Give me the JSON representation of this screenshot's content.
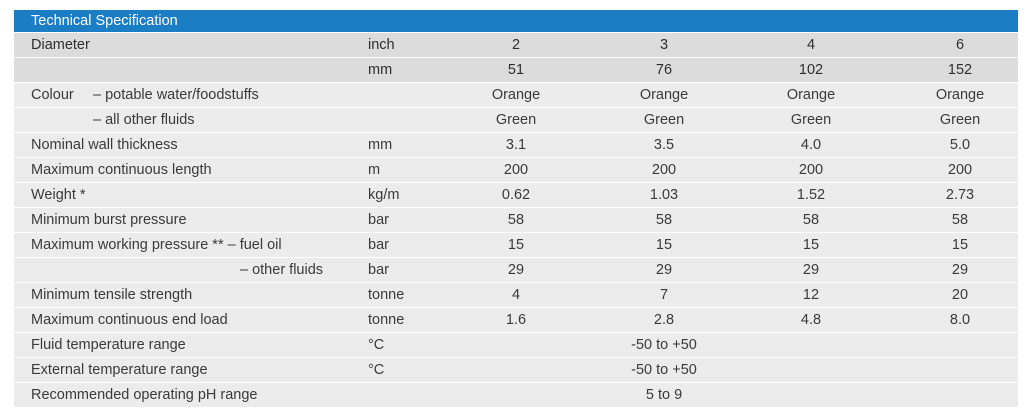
{
  "title": "Technical Specification",
  "header_rows": [
    {
      "label": "Diameter",
      "unit": "inch",
      "values": [
        "2",
        "3",
        "4",
        "6"
      ]
    },
    {
      "label": "",
      "unit": "mm",
      "values": [
        "51",
        "76",
        "102",
        "152"
      ]
    }
  ],
  "colour": {
    "label": "Colour",
    "sub1": "– potable water/foodstuffs",
    "sub1_values": [
      "Orange",
      "Orange",
      "Orange",
      "Orange"
    ],
    "sub2": "– all other fluids",
    "sub2_values": [
      "Green",
      "Green",
      "Green",
      "Green"
    ]
  },
  "rows": [
    {
      "label": "Nominal wall thickness",
      "unit": "mm",
      "values": [
        "3.1",
        "3.5",
        "4.0",
        "5.0"
      ]
    },
    {
      "label": "Maximum continuous length",
      "unit": "m",
      "values": [
        "200",
        "200",
        "200",
        "200"
      ]
    },
    {
      "label": "Weight *",
      "unit": "kg/m",
      "values": [
        "0.62",
        "1.03",
        "1.52",
        "2.73"
      ]
    },
    {
      "label": "Minimum burst pressure",
      "unit": "bar",
      "values": [
        "58",
        "58",
        "58",
        "58"
      ]
    },
    {
      "label": "Maximum working pressure ** – fuel oil",
      "unit": "bar",
      "values": [
        "15",
        "15",
        "15",
        "15"
      ]
    },
    {
      "label": "– other fluids",
      "unit": "bar",
      "values": [
        "29",
        "29",
        "29",
        "29"
      ]
    },
    {
      "label": "Minimum tensile strength",
      "unit": "tonne",
      "values": [
        "4",
        "7",
        "12",
        "20"
      ]
    },
    {
      "label": "Maximum continuous end load",
      "unit": "tonne",
      "values": [
        "1.6",
        "2.8",
        "4.8",
        "8.0"
      ]
    }
  ],
  "span_rows": [
    {
      "label": "Fluid temperature range",
      "unit": "°C",
      "value": "-50 to +50"
    },
    {
      "label": "External temperature range",
      "unit": "°C",
      "value": "-50 to +50"
    },
    {
      "label": "Recommended operating pH range",
      "unit": "",
      "value": "5 to 9"
    }
  ],
  "colors": {
    "title_bar": "#1b7dc4",
    "header_bg": "#dcdcdc",
    "stripe": "#ececec"
  }
}
